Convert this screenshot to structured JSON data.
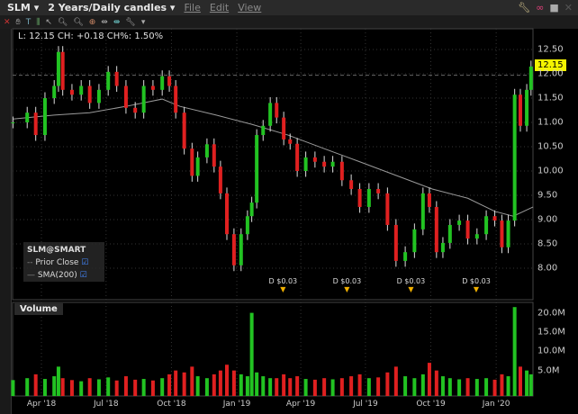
{
  "titlebar": {
    "symbol": "SLM",
    "period": "2 Years/Daily candles",
    "menus": [
      "File",
      "Edit",
      "View"
    ]
  },
  "info": {
    "text": "L: 12.15 CH: +0.18 CH%: 1.50%"
  },
  "legend": {
    "title": "SLM@SMART",
    "items": [
      "Prior Close",
      "SMA(200)"
    ]
  },
  "volume_label": "Volume",
  "last_price": "12.15",
  "dividends": [
    {
      "date": "2019-03-07",
      "label": "D $0.03"
    },
    {
      "date": "2019-06-05",
      "label": "D $0.03"
    },
    {
      "date": "2019-09-03",
      "label": "D $0.03"
    },
    {
      "date": "2019-12-04",
      "label": "D $0.03"
    }
  ],
  "colors": {
    "up": "#22c322",
    "down": "#e02020",
    "sma": "#9a9a9a",
    "last": "#f4f400"
  },
  "chart_data": [
    {
      "type": "candlestick",
      "ylim": [
        7.6,
        12.9
      ],
      "y_ticks": [
        "12.50",
        "12.00",
        "11.50",
        "11.00",
        "10.50",
        "10.00",
        "9.50",
        "9.00",
        "8.50",
        "8.00"
      ],
      "x_ticks": [
        "Apr '18",
        "Jul '18",
        "Oct '18",
        "Jan '19",
        "Apr '19",
        "Jul '19",
        "Oct '19",
        "Jan '20"
      ],
      "prior_close": 11.97,
      "close": [
        [
          "2018-02-20",
          11.0
        ],
        [
          "2018-03-12",
          11.2
        ],
        [
          "2018-03-24",
          10.74
        ],
        [
          "2018-04-06",
          11.5
        ],
        [
          "2018-04-19",
          11.75
        ],
        [
          "2018-04-25",
          12.45
        ],
        [
          "2018-05-01",
          11.67
        ],
        [
          "2018-05-14",
          11.57
        ],
        [
          "2018-05-27",
          11.75
        ],
        [
          "2018-06-08",
          11.4
        ],
        [
          "2018-06-21",
          11.67
        ],
        [
          "2018-07-04",
          12.04
        ],
        [
          "2018-07-16",
          11.75
        ],
        [
          "2018-07-29",
          11.3
        ],
        [
          "2018-08-11",
          11.2
        ],
        [
          "2018-08-23",
          11.75
        ],
        [
          "2018-09-05",
          11.67
        ],
        [
          "2018-09-18",
          11.95
        ],
        [
          "2018-09-28",
          11.75
        ],
        [
          "2018-10-07",
          11.2
        ],
        [
          "2018-10-19",
          10.46
        ],
        [
          "2018-10-30",
          9.9
        ],
        [
          "2018-11-07",
          10.28
        ],
        [
          "2018-11-20",
          10.55
        ],
        [
          "2018-11-30",
          10.09
        ],
        [
          "2018-12-09",
          9.54
        ],
        [
          "2018-12-18",
          8.7
        ],
        [
          "2018-12-28",
          8.06
        ],
        [
          "2019-01-07",
          8.7
        ],
        [
          "2019-01-16",
          9.07
        ],
        [
          "2019-01-22",
          9.35
        ],
        [
          "2019-01-29",
          10.74
        ],
        [
          "2019-02-07",
          10.93
        ],
        [
          "2019-02-17",
          11.4
        ],
        [
          "2019-02-26",
          11.1
        ],
        [
          "2019-03-08",
          10.65
        ],
        [
          "2019-03-17",
          10.56
        ],
        [
          "2019-03-27",
          10.0
        ],
        [
          "2019-04-08",
          10.28
        ],
        [
          "2019-04-21",
          10.19
        ],
        [
          "2019-05-04",
          10.09
        ],
        [
          "2019-05-16",
          10.19
        ],
        [
          "2019-05-29",
          9.81
        ],
        [
          "2019-06-11",
          9.63
        ],
        [
          "2019-06-23",
          9.26
        ],
        [
          "2019-07-06",
          9.63
        ],
        [
          "2019-07-19",
          9.54
        ],
        [
          "2019-08-01",
          8.89
        ],
        [
          "2019-08-13",
          8.15
        ],
        [
          "2019-08-26",
          8.33
        ],
        [
          "2019-09-08",
          8.8
        ],
        [
          "2019-09-20",
          9.54
        ],
        [
          "2019-09-29",
          9.26
        ],
        [
          "2019-10-09",
          8.33
        ],
        [
          "2019-10-18",
          8.52
        ],
        [
          "2019-10-28",
          8.89
        ],
        [
          "2019-11-10",
          8.98
        ],
        [
          "2019-11-22",
          8.61
        ],
        [
          "2019-12-05",
          8.7
        ],
        [
          "2019-12-18",
          9.07
        ],
        [
          "2019-12-30",
          8.98
        ],
        [
          "2020-01-09",
          8.43
        ],
        [
          "2020-01-18",
          8.98
        ],
        [
          "2020-01-27",
          11.57
        ],
        [
          "2020-02-04",
          10.93
        ],
        [
          "2020-02-13",
          11.67
        ],
        [
          "2020-02-19",
          12.15
        ]
      ],
      "sma200": [
        [
          "2018-02-20",
          11.07
        ],
        [
          "2018-04-19",
          11.15
        ],
        [
          "2018-06-08",
          11.2
        ],
        [
          "2018-07-29",
          11.33
        ],
        [
          "2018-09-18",
          11.48
        ],
        [
          "2018-10-13",
          11.33
        ],
        [
          "2018-12-03",
          11.15
        ],
        [
          "2019-01-22",
          10.96
        ],
        [
          "2019-03-14",
          10.74
        ],
        [
          "2019-05-04",
          10.46
        ],
        [
          "2019-06-23",
          10.19
        ],
        [
          "2019-08-13",
          9.91
        ],
        [
          "2019-10-03",
          9.63
        ],
        [
          "2019-11-22",
          9.44
        ],
        [
          "2019-12-30",
          9.17
        ],
        [
          "2020-01-25",
          9.07
        ],
        [
          "2020-02-22",
          9.26
        ]
      ]
    },
    {
      "type": "bar",
      "title": "Volume",
      "ylim": [
        0,
        22
      ],
      "y_ticks": [
        "20.0M",
        "15.0M",
        "10.0M",
        "5.0M"
      ],
      "volume_m": [
        2.5,
        3,
        4,
        2.8,
        3.5,
        6,
        3,
        2.5,
        2.2,
        3,
        2.7,
        3.2,
        2.4,
        3.5,
        2.6,
        2.8,
        2.4,
        3,
        4,
        5,
        4.5,
        6,
        3.5,
        3,
        4,
        5,
        6.5,
        5,
        4,
        3.5,
        20,
        4.5,
        3.5,
        3,
        3,
        4,
        3,
        3.5,
        2.8,
        2.6,
        3,
        2.7,
        3,
        3.5,
        4,
        3,
        3.2,
        4.5,
        6,
        3.5,
        3,
        4,
        7,
        5,
        3.5,
        3,
        2.7,
        3,
        2.8,
        3,
        2.6,
        4,
        3.5,
        21.5,
        6,
        5,
        4
      ]
    }
  ]
}
